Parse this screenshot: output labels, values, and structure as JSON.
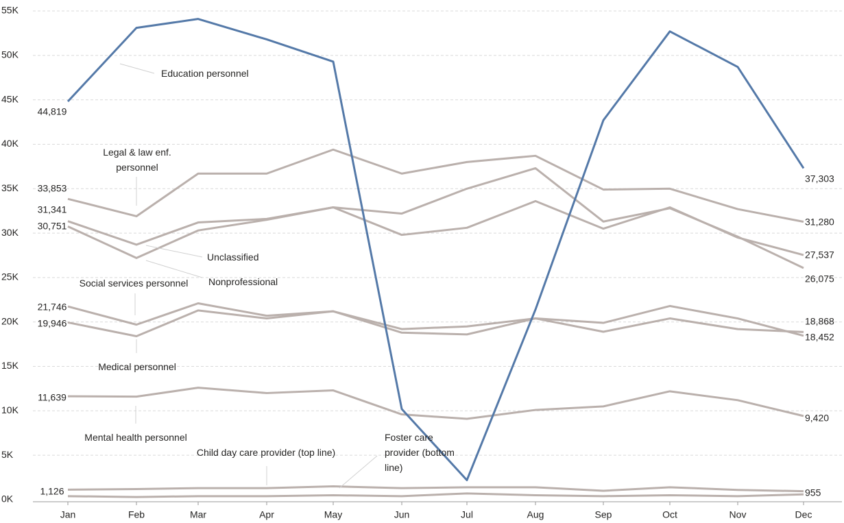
{
  "chart_data": {
    "type": "line",
    "categories": [
      "Jan",
      "Feb",
      "Mar",
      "Apr",
      "May",
      "Jun",
      "Jul",
      "Aug",
      "Sep",
      "Oct",
      "Nov",
      "Dec"
    ],
    "ylim": [
      0,
      55000
    ],
    "yticks": [
      {
        "value": 0,
        "label": "0K"
      },
      {
        "value": 5000,
        "label": "5K"
      },
      {
        "value": 10000,
        "label": "10K"
      },
      {
        "value": 15000,
        "label": "15K"
      },
      {
        "value": 20000,
        "label": "20K"
      },
      {
        "value": 25000,
        "label": "25K"
      },
      {
        "value": 30000,
        "label": "30K"
      },
      {
        "value": 35000,
        "label": "35K"
      },
      {
        "value": 40000,
        "label": "40K"
      },
      {
        "value": 45000,
        "label": "45K"
      },
      {
        "value": 50000,
        "label": "50K"
      },
      {
        "value": 55000,
        "label": "55K"
      }
    ],
    "grid": true,
    "series": [
      {
        "name": "Education personnel",
        "color": "#5479a8",
        "values": [
          44819,
          53100,
          54100,
          51800,
          49300,
          10200,
          2200,
          21400,
          42700,
          52700,
          48700,
          37303
        ],
        "value_labels": [
          "44,819",
          null,
          null,
          null,
          null,
          null,
          null,
          null,
          null,
          null,
          null,
          "37,303"
        ]
      },
      {
        "name": "Legal & law enf. personnel",
        "color": "#bab0ac",
        "values": [
          33853,
          31900,
          36700,
          36700,
          39400,
          36700,
          38000,
          38700,
          34900,
          35000,
          32700,
          31280
        ],
        "value_labels": [
          "33,853",
          null,
          null,
          null,
          null,
          null,
          null,
          null,
          null,
          null,
          null,
          "31,280"
        ]
      },
      {
        "name": "Unclassified",
        "color": "#bab0ac",
        "values": [
          31341,
          28700,
          31200,
          31600,
          32900,
          32200,
          35000,
          37300,
          31300,
          32800,
          29600,
          26075
        ],
        "value_labels": [
          "31,341",
          null,
          null,
          null,
          null,
          null,
          null,
          null,
          null,
          null,
          null,
          "26,075"
        ]
      },
      {
        "name": "Nonprofessional",
        "color": "#bab0ac",
        "values": [
          30751,
          27200,
          30300,
          31500,
          32900,
          29800,
          30600,
          33600,
          30500,
          32900,
          29500,
          27537
        ],
        "value_labels": [
          "30,751",
          null,
          null,
          null,
          null,
          null,
          null,
          null,
          null,
          null,
          null,
          "27,537"
        ]
      },
      {
        "name": "Social services personnel",
        "color": "#bab0ac",
        "values": [
          21746,
          19700,
          22100,
          20700,
          21200,
          19200,
          19500,
          20400,
          19900,
          21800,
          20400,
          18452
        ],
        "value_labels": [
          "21,746",
          null,
          null,
          null,
          null,
          null,
          null,
          null,
          null,
          null,
          null,
          "18,452"
        ]
      },
      {
        "name": "Medical personnel",
        "color": "#bab0ac",
        "values": [
          19946,
          18400,
          21300,
          20400,
          21200,
          18800,
          18600,
          20400,
          18900,
          20400,
          19200,
          18868
        ],
        "value_labels": [
          "19,946",
          null,
          null,
          null,
          null,
          null,
          null,
          null,
          null,
          null,
          null,
          "18,868"
        ]
      },
      {
        "name": "Mental health personnel",
        "color": "#bab0ac",
        "values": [
          11639,
          11600,
          12600,
          12000,
          12300,
          9600,
          9100,
          10100,
          10500,
          12200,
          11200,
          9420
        ],
        "value_labels": [
          "11,639",
          null,
          null,
          null,
          null,
          null,
          null,
          null,
          null,
          null,
          null,
          "9,420"
        ]
      },
      {
        "name": "Child day care provider (top line)",
        "color": "#bab0ac",
        "values": [
          1126,
          1200,
          1300,
          1300,
          1500,
          1300,
          1400,
          1400,
          1000,
          1400,
          1100,
          955
        ],
        "value_labels": [
          "1,126",
          null,
          null,
          null,
          null,
          null,
          null,
          null,
          null,
          null,
          null,
          "955"
        ]
      },
      {
        "name": "Foster care provider (bottom line)",
        "color": "#bab0ac",
        "values": [
          400,
          300,
          400,
          400,
          500,
          400,
          700,
          500,
          400,
          500,
          400,
          600
        ]
      }
    ]
  }
}
